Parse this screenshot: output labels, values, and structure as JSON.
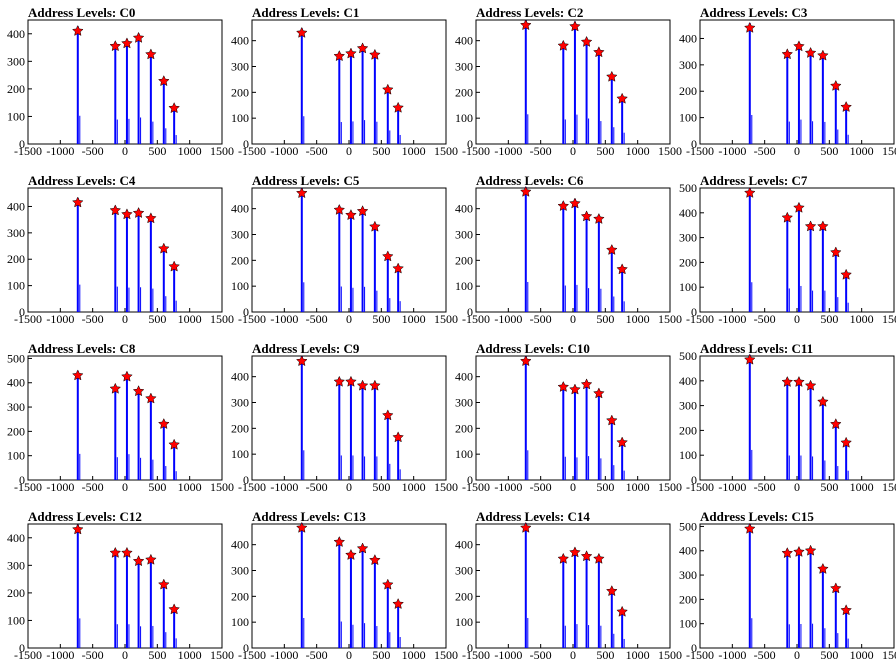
{
  "figure": {
    "background": "#ffffff",
    "histogram_color": "#0000ff",
    "marker_color": "#ff0000",
    "marker_shape": "star"
  },
  "chart_data": [
    {
      "type": "histogram-with-peaks",
      "title": "Address Levels: C0",
      "ylim": [
        0,
        450
      ],
      "yticks": [
        0,
        100,
        200,
        300,
        400
      ],
      "xlim": [
        -1500,
        1500
      ],
      "xtick_labels": [
        "-1500",
        "-1000",
        "-500",
        "0",
        "500",
        "1000",
        "1500"
      ],
      "peaks": [
        {
          "x": -730,
          "y": 410
        },
        {
          "x": -150,
          "y": 355
        },
        {
          "x": 30,
          "y": 365
        },
        {
          "x": 210,
          "y": 385
        },
        {
          "x": 400,
          "y": 325
        },
        {
          "x": 600,
          "y": 228
        },
        {
          "x": 760,
          "y": 130
        }
      ]
    },
    {
      "type": "histogram-with-peaks",
      "title": "Address Levels: C1",
      "ylim": [
        0,
        480
      ],
      "yticks": [
        0,
        100,
        200,
        300,
        400
      ],
      "xlim": [
        -1500,
        1500
      ],
      "xtick_labels": [
        "-1500",
        "-1000",
        "-500",
        "0",
        "500",
        "1000",
        "1500"
      ],
      "peaks": [
        {
          "x": -730,
          "y": 430
        },
        {
          "x": -150,
          "y": 340
        },
        {
          "x": 30,
          "y": 350
        },
        {
          "x": 210,
          "y": 370
        },
        {
          "x": 400,
          "y": 345
        },
        {
          "x": 600,
          "y": 210
        },
        {
          "x": 760,
          "y": 140
        }
      ]
    },
    {
      "type": "histogram-with-peaks",
      "title": "Address Levels: C2",
      "ylim": [
        0,
        480
      ],
      "yticks": [
        0,
        100,
        200,
        300,
        400
      ],
      "xlim": [
        -1500,
        1500
      ],
      "xtick_labels": [
        "-1500",
        "-1000",
        "-500",
        "0",
        "500",
        "1000",
        "1500"
      ],
      "peaks": [
        {
          "x": -730,
          "y": 460
        },
        {
          "x": -150,
          "y": 380
        },
        {
          "x": 30,
          "y": 455
        },
        {
          "x": 210,
          "y": 395
        },
        {
          "x": 400,
          "y": 355
        },
        {
          "x": 600,
          "y": 260
        },
        {
          "x": 760,
          "y": 175
        }
      ]
    },
    {
      "type": "histogram-with-peaks",
      "title": "Address Levels: C3",
      "ylim": [
        0,
        470
      ],
      "yticks": [
        0,
        100,
        200,
        300,
        400
      ],
      "xlim": [
        -1500,
        1500
      ],
      "xtick_labels": [
        "-1500",
        "-1000",
        "-500",
        "0",
        "500",
        "1000",
        "1500"
      ],
      "peaks": [
        {
          "x": -730,
          "y": 440
        },
        {
          "x": -150,
          "y": 340
        },
        {
          "x": 30,
          "y": 370
        },
        {
          "x": 210,
          "y": 345
        },
        {
          "x": 400,
          "y": 335
        },
        {
          "x": 600,
          "y": 220
        },
        {
          "x": 760,
          "y": 140
        }
      ]
    },
    {
      "type": "histogram-with-peaks",
      "title": "Address Levels: C4",
      "ylim": [
        0,
        470
      ],
      "yticks": [
        0,
        100,
        200,
        300,
        400
      ],
      "xlim": [
        -1500,
        1500
      ],
      "xtick_labels": [
        "-1500",
        "-1000",
        "-500",
        "0",
        "500",
        "1000",
        "1500"
      ],
      "peaks": [
        {
          "x": -730,
          "y": 415
        },
        {
          "x": -150,
          "y": 385
        },
        {
          "x": 30,
          "y": 370
        },
        {
          "x": 210,
          "y": 375
        },
        {
          "x": 400,
          "y": 355
        },
        {
          "x": 600,
          "y": 240
        },
        {
          "x": 760,
          "y": 172
        }
      ]
    },
    {
      "type": "histogram-with-peaks",
      "title": "Address Levels: C5",
      "ylim": [
        0,
        480
      ],
      "yticks": [
        0,
        100,
        200,
        300,
        400
      ],
      "xlim": [
        -1500,
        1500
      ],
      "xtick_labels": [
        "-1500",
        "-1000",
        "-500",
        "0",
        "500",
        "1000",
        "1500"
      ],
      "peaks": [
        {
          "x": -730,
          "y": 460
        },
        {
          "x": -150,
          "y": 395
        },
        {
          "x": 30,
          "y": 375
        },
        {
          "x": 210,
          "y": 390
        },
        {
          "x": 400,
          "y": 330
        },
        {
          "x": 600,
          "y": 215
        },
        {
          "x": 760,
          "y": 168
        }
      ]
    },
    {
      "type": "histogram-with-peaks",
      "title": "Address Levels: C6",
      "ylim": [
        0,
        480
      ],
      "yticks": [
        0,
        100,
        200,
        300,
        400
      ],
      "xlim": [
        -1500,
        1500
      ],
      "xtick_labels": [
        "-1500",
        "-1000",
        "-500",
        "0",
        "500",
        "1000",
        "1500"
      ],
      "peaks": [
        {
          "x": -730,
          "y": 465
        },
        {
          "x": -150,
          "y": 410
        },
        {
          "x": 30,
          "y": 420
        },
        {
          "x": 210,
          "y": 370
        },
        {
          "x": 400,
          "y": 360
        },
        {
          "x": 600,
          "y": 240
        },
        {
          "x": 760,
          "y": 165
        }
      ]
    },
    {
      "type": "histogram-with-peaks",
      "title": "Address Levels: C7",
      "ylim": [
        0,
        500
      ],
      "yticks": [
        0,
        100,
        200,
        300,
        400,
        500
      ],
      "xlim": [
        -1500,
        1500
      ],
      "xtick_labels": [
        "-1500",
        "-1000",
        "-500",
        "0",
        "500",
        "1000",
        "1500"
      ],
      "peaks": [
        {
          "x": -730,
          "y": 480
        },
        {
          "x": -150,
          "y": 380
        },
        {
          "x": 30,
          "y": 420
        },
        {
          "x": 210,
          "y": 345
        },
        {
          "x": 400,
          "y": 345
        },
        {
          "x": 600,
          "y": 240
        },
        {
          "x": 760,
          "y": 150
        }
      ]
    },
    {
      "type": "histogram-with-peaks",
      "title": "Address Levels: C8",
      "ylim": [
        0,
        510
      ],
      "yticks": [
        0,
        100,
        200,
        300,
        400,
        500
      ],
      "xlim": [
        -1500,
        1500
      ],
      "xtick_labels": [
        "-1500",
        "-1000",
        "-500",
        "0",
        "500",
        "1000",
        "1500"
      ],
      "peaks": [
        {
          "x": -730,
          "y": 430
        },
        {
          "x": -150,
          "y": 375
        },
        {
          "x": 30,
          "y": 425
        },
        {
          "x": 210,
          "y": 365
        },
        {
          "x": 400,
          "y": 335
        },
        {
          "x": 600,
          "y": 230
        },
        {
          "x": 760,
          "y": 145
        }
      ]
    },
    {
      "type": "histogram-with-peaks",
      "title": "Address Levels: C9",
      "ylim": [
        0,
        480
      ],
      "yticks": [
        0,
        100,
        200,
        300,
        400
      ],
      "xlim": [
        -1500,
        1500
      ],
      "xtick_labels": [
        "-1500",
        "-1000",
        "-500",
        "0",
        "500",
        "1000",
        "1500"
      ],
      "peaks": [
        {
          "x": -730,
          "y": 460
        },
        {
          "x": -150,
          "y": 380
        },
        {
          "x": 30,
          "y": 380
        },
        {
          "x": 210,
          "y": 365
        },
        {
          "x": 400,
          "y": 365
        },
        {
          "x": 600,
          "y": 250
        },
        {
          "x": 760,
          "y": 165
        }
      ]
    },
    {
      "type": "histogram-with-peaks",
      "title": "Address Levels: C10",
      "ylim": [
        0,
        480
      ],
      "yticks": [
        0,
        100,
        200,
        300,
        400
      ],
      "xlim": [
        -1500,
        1500
      ],
      "xtick_labels": [
        "-1500",
        "-1000",
        "-500",
        "0",
        "500",
        "1000",
        "1500"
      ],
      "peaks": [
        {
          "x": -730,
          "y": 460
        },
        {
          "x": -150,
          "y": 360
        },
        {
          "x": 30,
          "y": 350
        },
        {
          "x": 210,
          "y": 370
        },
        {
          "x": 400,
          "y": 335
        },
        {
          "x": 600,
          "y": 230
        },
        {
          "x": 760,
          "y": 145
        }
      ]
    },
    {
      "type": "histogram-with-peaks",
      "title": "Address Levels: C11",
      "ylim": [
        0,
        500
      ],
      "yticks": [
        0,
        100,
        200,
        300,
        400,
        500
      ],
      "xlim": [
        -1500,
        1500
      ],
      "xtick_labels": [
        "-1500",
        "-1000",
        "-500",
        "0",
        "500",
        "1000",
        "1500"
      ],
      "peaks": [
        {
          "x": -730,
          "y": 485
        },
        {
          "x": -150,
          "y": 395
        },
        {
          "x": 30,
          "y": 395
        },
        {
          "x": 210,
          "y": 380
        },
        {
          "x": 400,
          "y": 315
        },
        {
          "x": 600,
          "y": 225
        },
        {
          "x": 760,
          "y": 150
        }
      ]
    },
    {
      "type": "histogram-with-peaks",
      "title": "Address Levels: C12",
      "ylim": [
        0,
        450
      ],
      "yticks": [
        0,
        100,
        200,
        300,
        400
      ],
      "xlim": [
        -1500,
        1500
      ],
      "xtick_labels": [
        "-1500",
        "-1000",
        "-500",
        "0",
        "500",
        "1000",
        "1500"
      ],
      "peaks": [
        {
          "x": -730,
          "y": 430
        },
        {
          "x": -150,
          "y": 345
        },
        {
          "x": 30,
          "y": 345
        },
        {
          "x": 210,
          "y": 315
        },
        {
          "x": 400,
          "y": 320
        },
        {
          "x": 600,
          "y": 230
        },
        {
          "x": 760,
          "y": 140
        }
      ]
    },
    {
      "type": "histogram-with-peaks",
      "title": "Address Levels: C13",
      "ylim": [
        0,
        480
      ],
      "yticks": [
        0,
        100,
        200,
        300,
        400
      ],
      "xlim": [
        -1500,
        1500
      ],
      "xtick_labels": [
        "-1500",
        "-1000",
        "-500",
        "0",
        "500",
        "1000",
        "1500"
      ],
      "peaks": [
        {
          "x": -730,
          "y": 465
        },
        {
          "x": -150,
          "y": 410
        },
        {
          "x": 30,
          "y": 360
        },
        {
          "x": 210,
          "y": 385
        },
        {
          "x": 400,
          "y": 340
        },
        {
          "x": 600,
          "y": 245
        },
        {
          "x": 760,
          "y": 170
        }
      ]
    },
    {
      "type": "histogram-with-peaks",
      "title": "Address Levels: C14",
      "ylim": [
        0,
        480
      ],
      "yticks": [
        0,
        100,
        200,
        300,
        400
      ],
      "xlim": [
        -1500,
        1500
      ],
      "xtick_labels": [
        "-1500",
        "-1000",
        "-500",
        "0",
        "500",
        "1000",
        "1500"
      ],
      "peaks": [
        {
          "x": -730,
          "y": 465
        },
        {
          "x": -150,
          "y": 345
        },
        {
          "x": 30,
          "y": 370
        },
        {
          "x": 210,
          "y": 355
        },
        {
          "x": 400,
          "y": 345
        },
        {
          "x": 600,
          "y": 220
        },
        {
          "x": 760,
          "y": 140
        }
      ]
    },
    {
      "type": "histogram-with-peaks",
      "title": "Address Levels: C15",
      "ylim": [
        0,
        510
      ],
      "yticks": [
        0,
        100,
        200,
        300,
        400,
        500
      ],
      "xlim": [
        -1500,
        1500
      ],
      "xtick_labels": [
        "-1500",
        "-1000",
        "-500",
        "0",
        "500",
        "1000",
        "1500"
      ],
      "peaks": [
        {
          "x": -730,
          "y": 490
        },
        {
          "x": -150,
          "y": 390
        },
        {
          "x": 30,
          "y": 395
        },
        {
          "x": 210,
          "y": 400
        },
        {
          "x": 400,
          "y": 325
        },
        {
          "x": 600,
          "y": 245
        },
        {
          "x": 760,
          "y": 155
        }
      ]
    }
  ]
}
